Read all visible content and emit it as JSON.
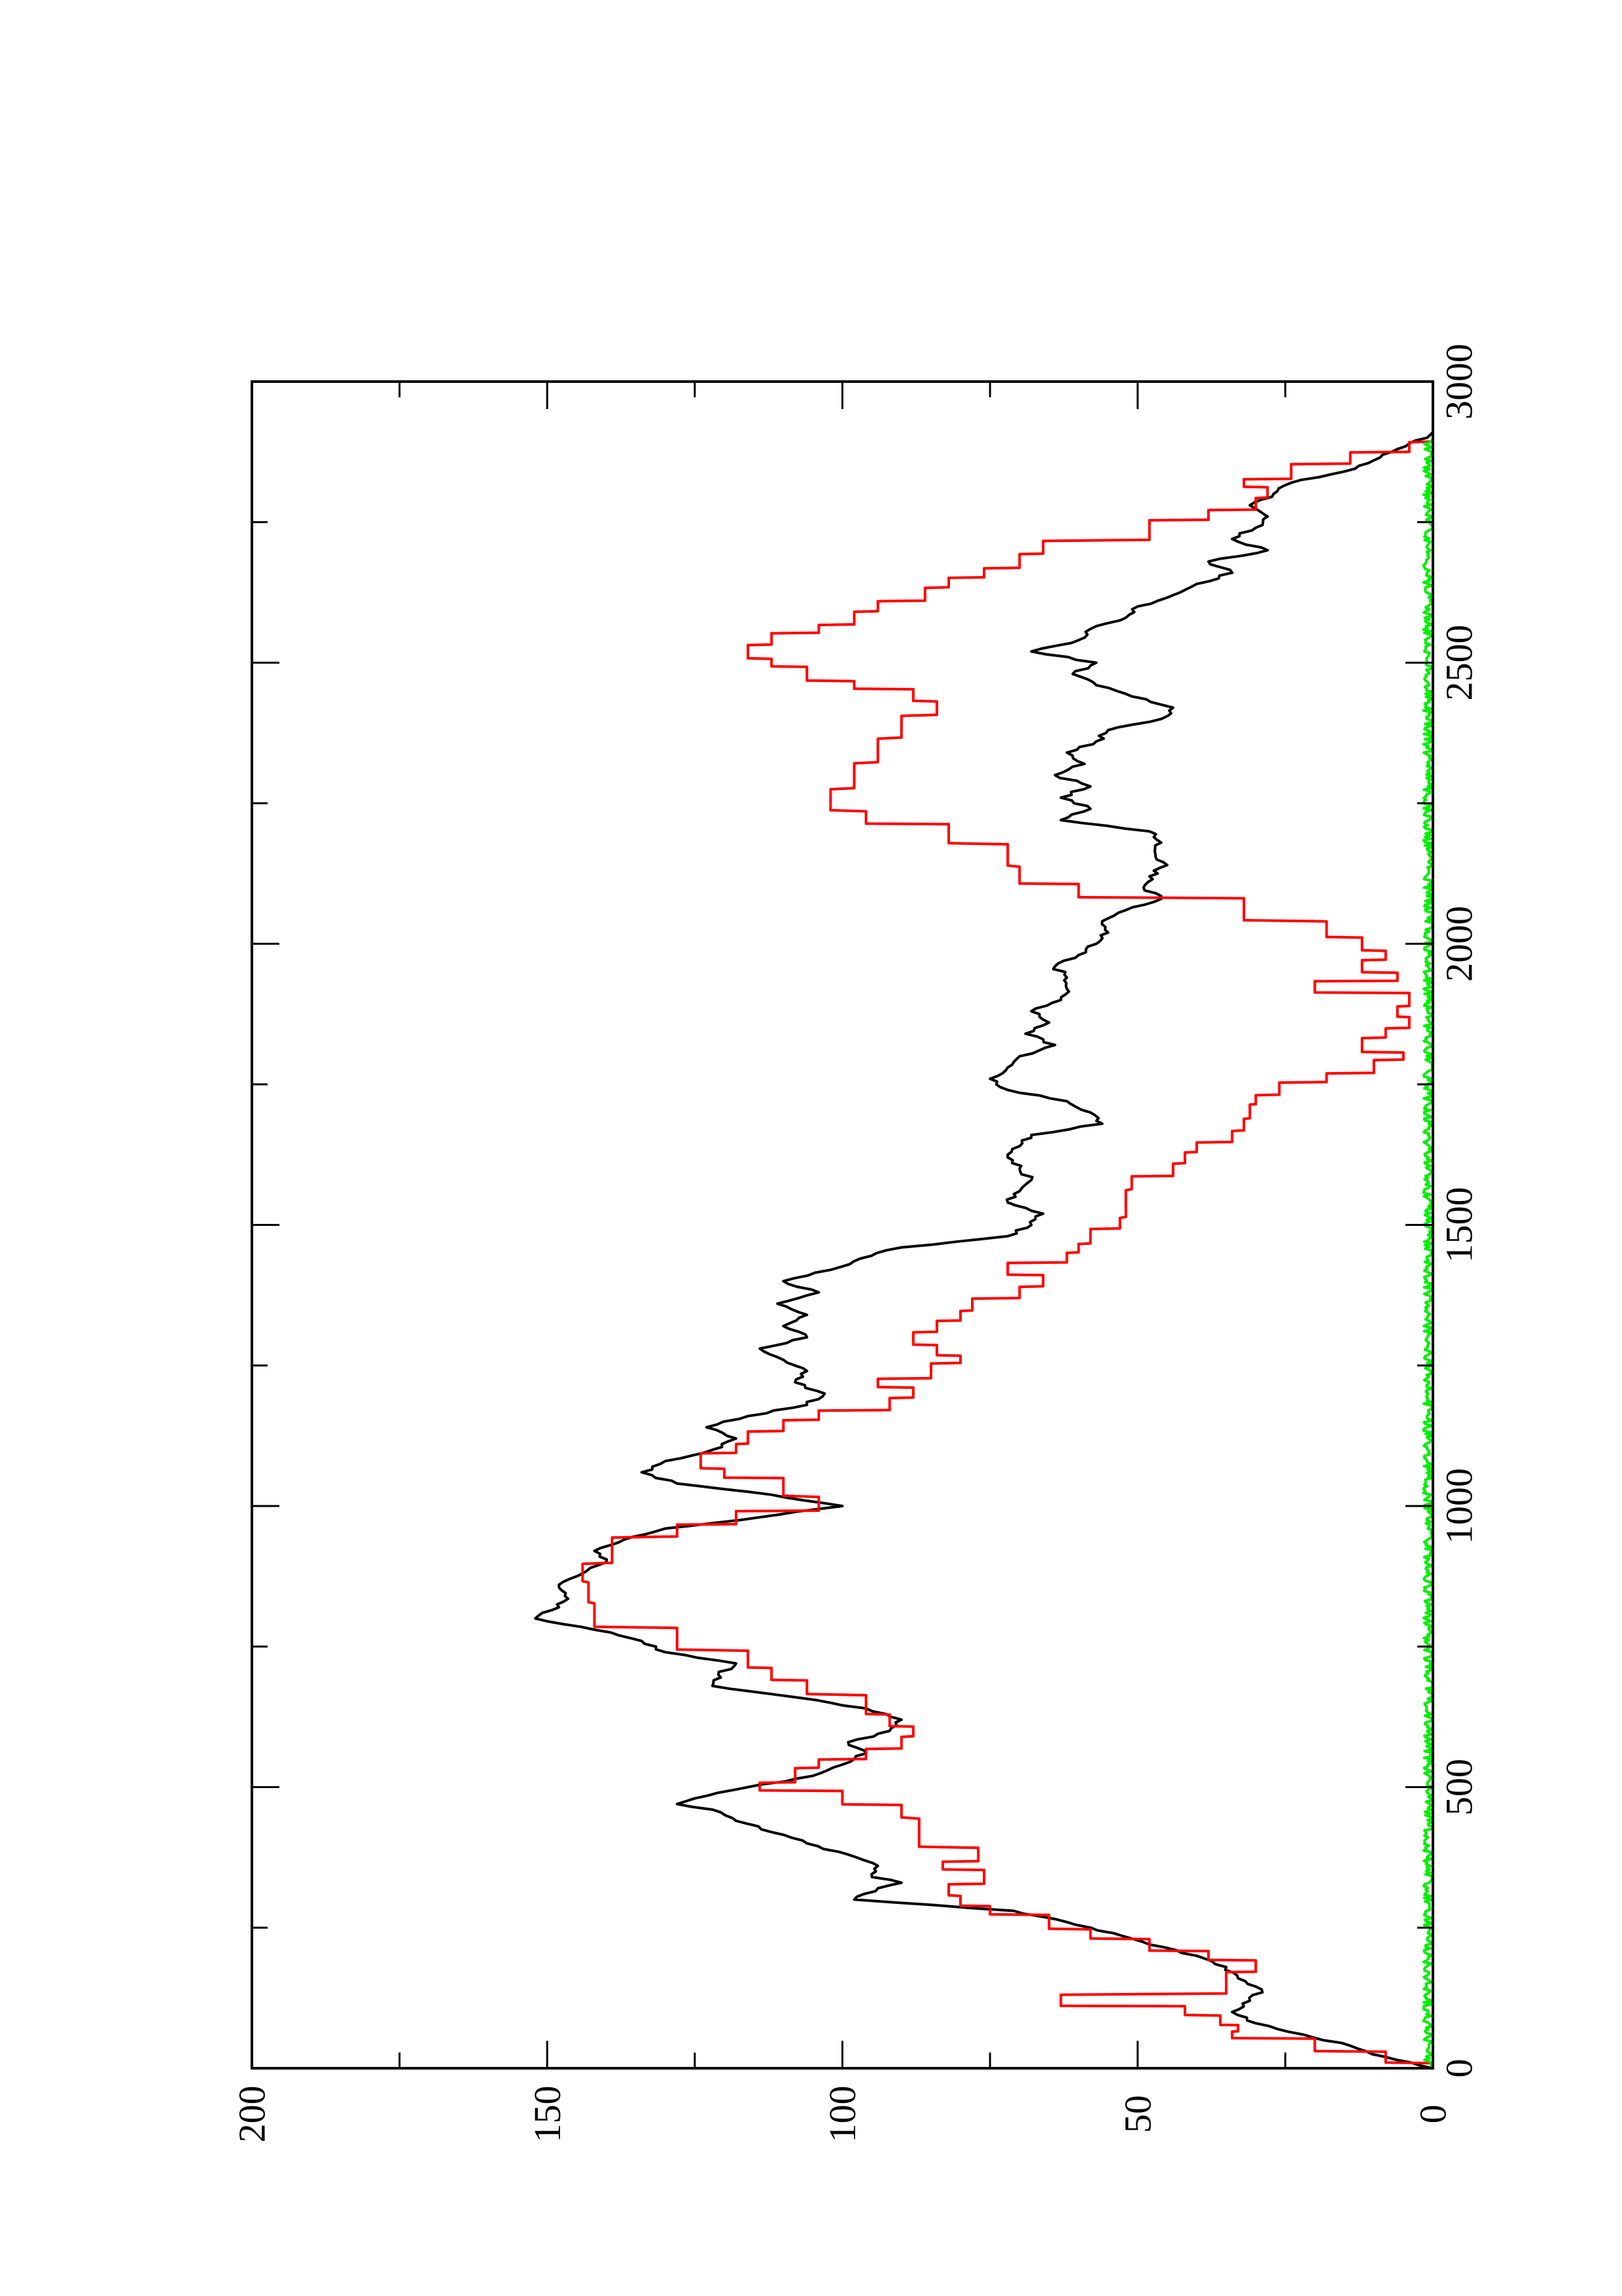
{
  "chart_data": {
    "type": "line",
    "orientation": "rotated 90 degrees counter-clockwise",
    "title": "",
    "xlabel": "",
    "ylabel": "",
    "xlim": [
      0,
      3000
    ],
    "ylim": [
      0,
      200
    ],
    "x_ticks": [
      "0",
      "500",
      "1000",
      "1500",
      "2000",
      "2500",
      "3000"
    ],
    "y_ticks": [
      "0",
      "50",
      "100",
      "150",
      "200"
    ],
    "x_minor_step": 250,
    "y_minor_step": 25,
    "grid": false,
    "legend": "none",
    "series": [
      {
        "color": "#000000",
        "style": "noisy",
        "points": [
          [
            0,
            0
          ],
          [
            20,
            8
          ],
          [
            40,
            14
          ],
          [
            60,
            22
          ],
          [
            80,
            30
          ],
          [
            100,
            34
          ],
          [
            120,
            31
          ],
          [
            140,
            29
          ],
          [
            160,
            33
          ],
          [
            180,
            35
          ],
          [
            200,
            40
          ],
          [
            220,
            48
          ],
          [
            240,
            54
          ],
          [
            260,
            62
          ],
          [
            280,
            71
          ],
          [
            300,
            98
          ],
          [
            320,
            94
          ],
          [
            330,
            90
          ],
          [
            340,
            95
          ],
          [
            360,
            94
          ],
          [
            380,
            99
          ],
          [
            400,
            106
          ],
          [
            420,
            112
          ],
          [
            440,
            118
          ],
          [
            460,
            122
          ],
          [
            470,
            128
          ],
          [
            480,
            125
          ],
          [
            500,
            116
          ],
          [
            520,
            105
          ],
          [
            540,
            100
          ],
          [
            560,
            96
          ],
          [
            580,
            99
          ],
          [
            600,
            92
          ],
          [
            620,
            90
          ],
          [
            640,
            96
          ],
          [
            660,
            108
          ],
          [
            680,
            122
          ],
          [
            700,
            121
          ],
          [
            720,
            118
          ],
          [
            740,
            130
          ],
          [
            760,
            134
          ],
          [
            780,
            142
          ],
          [
            800,
            152
          ],
          [
            820,
            148
          ],
          [
            840,
            147
          ],
          [
            860,
            148
          ],
          [
            880,
            144
          ],
          [
            900,
            140
          ],
          [
            920,
            142
          ],
          [
            940,
            137
          ],
          [
            960,
            130
          ],
          [
            980,
            114
          ],
          [
            1000,
            100
          ],
          [
            1020,
            112
          ],
          [
            1040,
            128
          ],
          [
            1060,
            134
          ],
          [
            1080,
            130
          ],
          [
            1100,
            122
          ],
          [
            1120,
            118
          ],
          [
            1140,
            123
          ],
          [
            1160,
            116
          ],
          [
            1180,
            106
          ],
          [
            1200,
            103
          ],
          [
            1220,
            108
          ],
          [
            1240,
            106
          ],
          [
            1260,
            110
          ],
          [
            1280,
            114
          ],
          [
            1300,
            106
          ],
          [
            1320,
            110
          ],
          [
            1340,
            106
          ],
          [
            1360,
            111
          ],
          [
            1380,
            104
          ],
          [
            1400,
            110
          ],
          [
            1420,
            102
          ],
          [
            1440,
            97
          ],
          [
            1460,
            90
          ],
          [
            1480,
            72
          ],
          [
            1500,
            68
          ],
          [
            1520,
            66
          ],
          [
            1540,
            72
          ],
          [
            1560,
            70
          ],
          [
            1580,
            68
          ],
          [
            1600,
            70
          ],
          [
            1620,
            72
          ],
          [
            1640,
            70
          ],
          [
            1660,
            68
          ],
          [
            1680,
            56
          ],
          [
            1700,
            58
          ],
          [
            1720,
            62
          ],
          [
            1740,
            72
          ],
          [
            1760,
            75
          ],
          [
            1780,
            72
          ],
          [
            1800,
            70
          ],
          [
            1820,
            64
          ],
          [
            1840,
            69
          ],
          [
            1860,
            65
          ],
          [
            1880,
            68
          ],
          [
            1900,
            63
          ],
          [
            1920,
            62
          ],
          [
            1940,
            62
          ],
          [
            1960,
            64
          ],
          [
            1980,
            60
          ],
          [
            2000,
            57
          ],
          [
            2020,
            55
          ],
          [
            2040,
            56
          ],
          [
            2060,
            52
          ],
          [
            2080,
            46
          ],
          [
            2100,
            49
          ],
          [
            2120,
            48
          ],
          [
            2140,
            45
          ],
          [
            2160,
            47
          ],
          [
            2180,
            46
          ],
          [
            2200,
            48
          ],
          [
            2220,
            63
          ],
          [
            2240,
            58
          ],
          [
            2260,
            63
          ],
          [
            2280,
            58
          ],
          [
            2300,
            64
          ],
          [
            2320,
            59
          ],
          [
            2340,
            62
          ],
          [
            2360,
            57
          ],
          [
            2380,
            55
          ],
          [
            2400,
            46
          ],
          [
            2420,
            44
          ],
          [
            2440,
            51
          ],
          [
            2460,
            57
          ],
          [
            2480,
            61
          ],
          [
            2500,
            57
          ],
          [
            2520,
            68
          ],
          [
            2540,
            60
          ],
          [
            2560,
            58
          ],
          [
            2580,
            52
          ],
          [
            2600,
            50
          ],
          [
            2620,
            44
          ],
          [
            2640,
            40
          ],
          [
            2660,
            34
          ],
          [
            2680,
            38
          ],
          [
            2700,
            28
          ],
          [
            2720,
            34
          ],
          [
            2740,
            30
          ],
          [
            2760,
            28
          ],
          [
            2780,
            31
          ],
          [
            2800,
            27
          ],
          [
            2820,
            24
          ],
          [
            2840,
            15
          ],
          [
            2860,
            10
          ],
          [
            2880,
            6
          ],
          [
            2900,
            1
          ],
          [
            2910,
            0
          ]
        ]
      },
      {
        "color": "#ff0000",
        "style": "steps",
        "points": [
          [
            0,
            0
          ],
          [
            20,
            8
          ],
          [
            40,
            20
          ],
          [
            60,
            34
          ],
          [
            70,
            33
          ],
          [
            80,
            36
          ],
          [
            100,
            42
          ],
          [
            115,
            63
          ],
          [
            160,
            35
          ],
          [
            180,
            30
          ],
          [
            200,
            38
          ],
          [
            220,
            48
          ],
          [
            240,
            58
          ],
          [
            260,
            65
          ],
          [
            280,
            75
          ],
          [
            300,
            80
          ],
          [
            320,
            82
          ],
          [
            340,
            76
          ],
          [
            360,
            83
          ],
          [
            380,
            77
          ],
          [
            420,
            87
          ],
          [
            460,
            90
          ],
          [
            480,
            100
          ],
          [
            500,
            114
          ],
          [
            520,
            108
          ],
          [
            540,
            104
          ],
          [
            560,
            96
          ],
          [
            580,
            90
          ],
          [
            600,
            88
          ],
          [
            620,
            92
          ],
          [
            640,
            96
          ],
          [
            680,
            106
          ],
          [
            700,
            112
          ],
          [
            720,
            116
          ],
          [
            760,
            128
          ],
          [
            800,
            142
          ],
          [
            840,
            143
          ],
          [
            880,
            144
          ],
          [
            920,
            139
          ],
          [
            960,
            128
          ],
          [
            980,
            118
          ],
          [
            1000,
            104
          ],
          [
            1040,
            110
          ],
          [
            1060,
            120
          ],
          [
            1080,
            124
          ],
          [
            1100,
            118
          ],
          [
            1120,
            116
          ],
          [
            1140,
            110
          ],
          [
            1160,
            104
          ],
          [
            1180,
            92
          ],
          [
            1200,
            88
          ],
          [
            1220,
            94
          ],
          [
            1240,
            85
          ],
          [
            1260,
            80
          ],
          [
            1280,
            84
          ],
          [
            1300,
            88
          ],
          [
            1320,
            84
          ],
          [
            1340,
            80
          ],
          [
            1360,
            78
          ],
          [
            1380,
            70
          ],
          [
            1400,
            66
          ],
          [
            1420,
            72
          ],
          [
            1440,
            62
          ],
          [
            1460,
            60
          ],
          [
            1480,
            58
          ],
          [
            1500,
            53
          ],
          [
            1540,
            52
          ],
          [
            1580,
            51
          ],
          [
            1600,
            44
          ],
          [
            1620,
            42
          ],
          [
            1640,
            40
          ],
          [
            1660,
            34
          ],
          [
            1680,
            32
          ],
          [
            1700,
            31
          ],
          [
            1720,
            30
          ],
          [
            1740,
            26
          ],
          [
            1760,
            18
          ],
          [
            1780,
            10
          ],
          [
            1800,
            5
          ],
          [
            1820,
            12
          ],
          [
            1840,
            8
          ],
          [
            1860,
            4
          ],
          [
            1880,
            6
          ],
          [
            1900,
            4
          ],
          [
            1920,
            20
          ],
          [
            1940,
            6
          ],
          [
            1960,
            12
          ],
          [
            1980,
            8
          ],
          [
            2000,
            12
          ],
          [
            2020,
            18
          ],
          [
            2060,
            32
          ],
          [
            2100,
            60
          ],
          [
            2120,
            70
          ],
          [
            2160,
            72
          ],
          [
            2200,
            82
          ],
          [
            2220,
            96
          ],
          [
            2260,
            102
          ],
          [
            2300,
            98
          ],
          [
            2340,
            94
          ],
          [
            2380,
            90
          ],
          [
            2420,
            84
          ],
          [
            2440,
            88
          ],
          [
            2460,
            98
          ],
          [
            2480,
            106
          ],
          [
            2500,
            112
          ],
          [
            2520,
            116
          ],
          [
            2540,
            112
          ],
          [
            2560,
            104
          ],
          [
            2580,
            98
          ],
          [
            2600,
            94
          ],
          [
            2620,
            86
          ],
          [
            2640,
            82
          ],
          [
            2660,
            76
          ],
          [
            2680,
            70
          ],
          [
            2700,
            66
          ],
          [
            2740,
            48
          ],
          [
            2760,
            38
          ],
          [
            2780,
            30
          ],
          [
            2800,
            28
          ],
          [
            2820,
            32
          ],
          [
            2840,
            24
          ],
          [
            2860,
            14
          ],
          [
            2880,
            4
          ],
          [
            2900,
            0
          ]
        ]
      },
      {
        "color": "#00ee00",
        "style": "noise",
        "points": [
          [
            0,
            0
          ],
          [
            3000,
            0
          ]
        ]
      }
    ]
  }
}
